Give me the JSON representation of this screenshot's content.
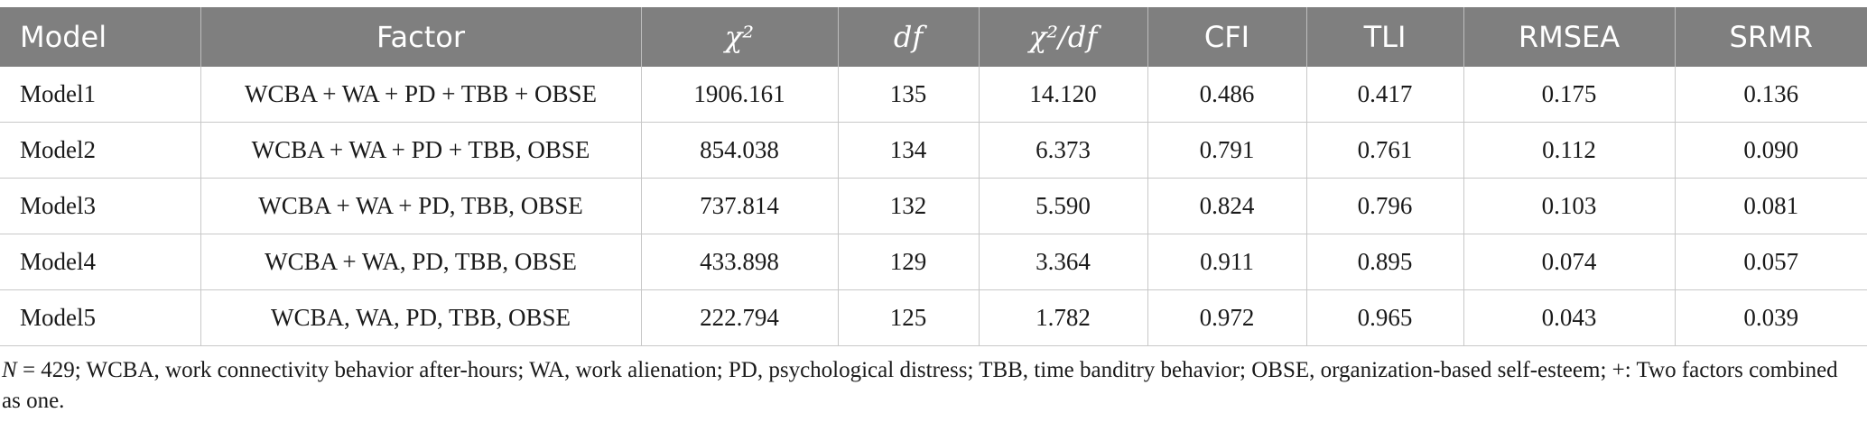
{
  "table": {
    "headers": [
      {
        "label": "Model",
        "italic": false
      },
      {
        "label": "Factor",
        "italic": false
      },
      {
        "label": "χ²",
        "italic": true
      },
      {
        "label": "df",
        "italic": true
      },
      {
        "label": "χ²/df",
        "italic": true
      },
      {
        "label": "CFI",
        "italic": false
      },
      {
        "label": "TLI",
        "italic": false
      },
      {
        "label": "RMSEA",
        "italic": false
      },
      {
        "label": "SRMR",
        "italic": false
      }
    ],
    "rows": [
      [
        "Model1",
        "WCBA + WA + PD + TBB + OBSE",
        "1906.161",
        "135",
        "14.120",
        "0.486",
        "0.417",
        "0.175",
        "0.136"
      ],
      [
        "Model2",
        "WCBA + WA + PD + TBB, OBSE",
        "854.038",
        "134",
        "6.373",
        "0.791",
        "0.761",
        "0.112",
        "0.090"
      ],
      [
        "Model3",
        "WCBA + WA + PD, TBB, OBSE",
        "737.814",
        "132",
        "5.590",
        "0.824",
        "0.796",
        "0.103",
        "0.081"
      ],
      [
        "Model4",
        "WCBA + WA, PD, TBB, OBSE",
        "433.898",
        "129",
        "3.364",
        "0.911",
        "0.895",
        "0.074",
        "0.057"
      ],
      [
        "Model5",
        "WCBA, WA, PD, TBB, OBSE",
        "222.794",
        "125",
        "1.782",
        "0.972",
        "0.965",
        "0.043",
        "0.039"
      ]
    ]
  },
  "note": {
    "n_label": "N",
    "n_rest": " = 429; WCBA, work connectivity behavior after-hours; WA, work alienation; PD, psychological distress; TBB, time banditry behavior; OBSE, organization-based self-esteem; +: Two factors combined as one."
  },
  "colors": {
    "header_bg": "#7f7f7f",
    "header_text": "#ffffff",
    "grid": "#c8c8c8"
  }
}
